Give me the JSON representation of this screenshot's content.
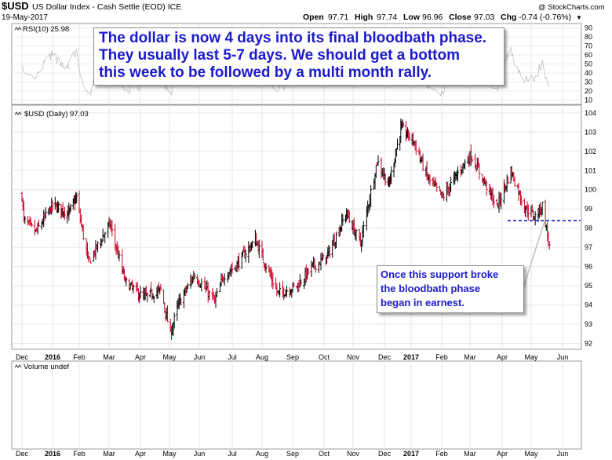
{
  "header": {
    "symbol": "$USD",
    "description": "US Dollar Index - Cash Settle (EOD) ICE",
    "date": "19-May-2017",
    "watermark": "@ StockCharts.com",
    "open_label": "Open",
    "open": "97.71",
    "high_label": "High",
    "high": "97.74",
    "low_label": "Low",
    "low": "96.96",
    "close_label": "Close",
    "close": "97.03",
    "chg_label": "Chg",
    "chg": "-0.74 (-0.76%)",
    "chg_marker": "▼"
  },
  "panels": {
    "rsi_label": "RSI(10) 25.98",
    "price_label": "$USD (Daily) 97.03",
    "volume_label": "Volume undef"
  },
  "annotations": {
    "main": [
      "The dollar is now 4 days into its final bloodbath phase.",
      "They usually last 5-7 days. We should get a bottom",
      "this week to be followed by a multi month rally."
    ],
    "support": [
      "Once this support broke",
      "the bloodbath phase",
      "began in earnest."
    ]
  },
  "colors": {
    "up_bar": "#000000",
    "down_bar": "#cc0022",
    "support_line": "#1a1acc",
    "annotation_text": "#1a1acc",
    "grid": "#e6e6e6",
    "chg_negative": "#cc0066"
  },
  "chart_data": {
    "type": "ohlc",
    "title": "$USD (Daily) 97.03",
    "x_tick_labels": [
      "Dec",
      "2016",
      "Feb",
      "Mar",
      "Apr",
      "May",
      "Jun",
      "Jul",
      "Aug",
      "Sep",
      "Oct",
      "Nov",
      "Dec",
      "2017",
      "Feb",
      "Mar",
      "Apr",
      "May",
      "Jun"
    ],
    "y_ticks": [
      92,
      93,
      94,
      95,
      96,
      97,
      98,
      99,
      100,
      101,
      102,
      103,
      104
    ],
    "ylim": [
      91.7,
      104.4
    ],
    "rsi_ticks": [
      10,
      20,
      30,
      40,
      50,
      60,
      70,
      80,
      90
    ],
    "rsi_ylim": [
      5,
      95
    ],
    "support_level": 98.4,
    "grid": true,
    "series": [
      {
        "name": "$USD",
        "values": [
          {
            "x": "2015-12-01",
            "y": 99.7
          },
          {
            "x": "2015-12-03",
            "y": 98.4
          },
          {
            "x": "2015-12-15",
            "y": 97.8
          },
          {
            "x": "2016-01-01",
            "y": 99.2
          },
          {
            "x": "2016-01-20",
            "y": 98.8
          },
          {
            "x": "2016-01-29",
            "y": 99.6
          },
          {
            "x": "2016-02-10",
            "y": 96.2
          },
          {
            "x": "2016-02-24",
            "y": 97.6
          },
          {
            "x": "2016-03-02",
            "y": 98.2
          },
          {
            "x": "2016-03-17",
            "y": 95.2
          },
          {
            "x": "2016-04-04",
            "y": 94.4
          },
          {
            "x": "2016-04-22",
            "y": 94.8
          },
          {
            "x": "2016-05-02",
            "y": 92.5
          },
          {
            "x": "2016-05-10",
            "y": 94.0
          },
          {
            "x": "2016-05-27",
            "y": 95.6
          },
          {
            "x": "2016-06-15",
            "y": 94.2
          },
          {
            "x": "2016-06-24",
            "y": 95.6
          },
          {
            "x": "2016-07-04",
            "y": 96.0
          },
          {
            "x": "2016-07-25",
            "y": 97.4
          },
          {
            "x": "2016-08-17",
            "y": 94.6
          },
          {
            "x": "2016-09-05",
            "y": 95.0
          },
          {
            "x": "2016-09-20",
            "y": 96.0
          },
          {
            "x": "2016-10-04",
            "y": 96.5
          },
          {
            "x": "2016-10-25",
            "y": 98.8
          },
          {
            "x": "2016-11-08",
            "y": 97.2
          },
          {
            "x": "2016-11-24",
            "y": 101.5
          },
          {
            "x": "2016-12-06",
            "y": 100.2
          },
          {
            "x": "2016-12-20",
            "y": 103.2
          },
          {
            "x": "2017-01-03",
            "y": 102.6
          },
          {
            "x": "2017-01-18",
            "y": 100.6
          },
          {
            "x": "2017-02-02",
            "y": 99.6
          },
          {
            "x": "2017-02-21",
            "y": 101.2
          },
          {
            "x": "2017-03-02",
            "y": 101.8
          },
          {
            "x": "2017-03-27",
            "y": 99.1
          },
          {
            "x": "2017-04-10",
            "y": 101.0
          },
          {
            "x": "2017-04-24",
            "y": 99.1
          },
          {
            "x": "2017-05-05",
            "y": 98.6
          },
          {
            "x": "2017-05-12",
            "y": 99.2
          },
          {
            "x": "2017-05-19",
            "y": 97.03
          }
        ]
      }
    ]
  }
}
